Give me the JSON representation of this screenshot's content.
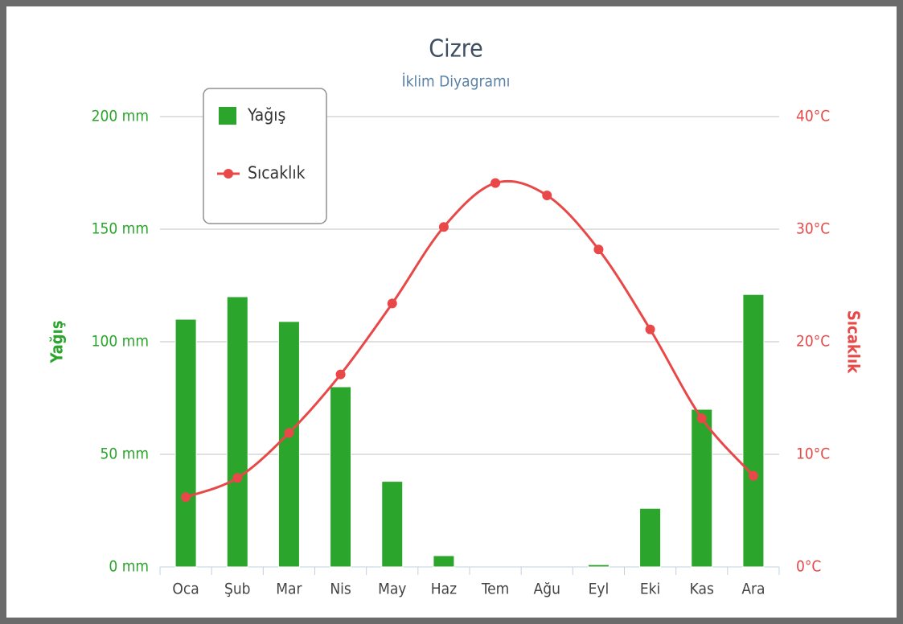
{
  "chart_data": {
    "type": "bar_line",
    "title": "Cizre",
    "subtitle": "İklim Diyagramı",
    "categories": [
      "Oca",
      "Şub",
      "Mar",
      "Nis",
      "May",
      "Haz",
      "Tem",
      "Ağu",
      "Eyl",
      "Eki",
      "Kas",
      "Ara"
    ],
    "series": [
      {
        "name": "Yağış",
        "type": "bar",
        "color": "#2ca52c",
        "values": [
          110,
          120,
          109,
          80,
          38,
          5,
          0,
          0,
          1,
          26,
          70,
          121
        ]
      },
      {
        "name": "Sıcaklık",
        "type": "line",
        "axis": "y2",
        "color": "#e84848",
        "values": [
          6.2,
          7.9,
          11.9,
          17.1,
          23.4,
          30.2,
          34.1,
          33.0,
          28.2,
          21.1,
          13.2,
          8.1
        ]
      }
    ],
    "ylabel": "Yağış",
    "y2label": "Sıcaklık",
    "ylim": [
      0,
      200
    ],
    "yticks": [
      {
        "value": 0,
        "label": "0 mm"
      },
      {
        "value": 50,
        "label": "50 mm"
      },
      {
        "value": 100,
        "label": "100 mm"
      },
      {
        "value": 150,
        "label": "150 mm"
      },
      {
        "value": 200,
        "label": "200 mm"
      }
    ],
    "y2lim": [
      0,
      40
    ],
    "y2ticks": [
      {
        "value": 0,
        "label": "0°C"
      },
      {
        "value": 10,
        "label": "10°C"
      },
      {
        "value": 20,
        "label": "20°C"
      },
      {
        "value": 30,
        "label": "30°C"
      },
      {
        "value": 40,
        "label": "40°C"
      }
    ],
    "grid": true,
    "legend": "upper left"
  }
}
